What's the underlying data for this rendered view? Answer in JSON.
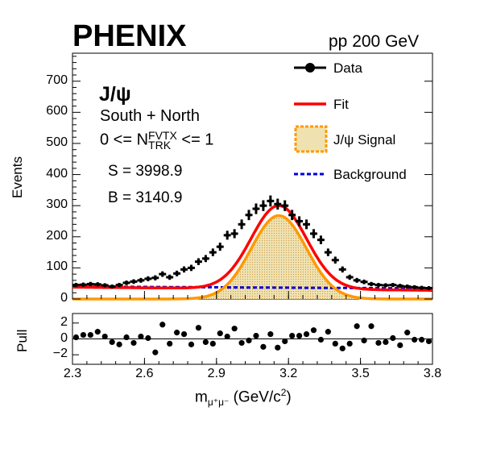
{
  "header": {
    "experiment": "PHENIX",
    "energy": "pp 200 GeV"
  },
  "annotations": {
    "particle": "J/ψ",
    "arm": "South + North",
    "multiplicity_prefix": "0 <= N",
    "multiplicity_sub": "TRK",
    "multiplicity_sup": "FVTX",
    "multiplicity_suffix": " <= 1",
    "signal_count": "S = 3998.9",
    "background_count": "B = 3140.9"
  },
  "legend": {
    "data": "Data",
    "fit": "Fit",
    "signal": "J/ψ Signal",
    "background": "Background"
  },
  "colors": {
    "data": "#000000",
    "fit": "#ff0000",
    "signal": "#ff9900",
    "signal_fill": "#f0e2b0",
    "background": "#0000dd"
  },
  "chart_data": {
    "type": "scatter",
    "title": "",
    "xlabel_main": "m",
    "xlabel_sub": "μ⁺μ⁻",
    "xlabel_units": " (GeV/c",
    "xlabel_sup": "2",
    "xlabel_close": ")",
    "ylabel": "Events",
    "pull_ylabel": "Pull",
    "xlim": [
      2.3,
      3.8
    ],
    "ylim": [
      0,
      790
    ],
    "pull_ylim": [
      -3.2,
      3.2
    ],
    "x_ticks": [
      "2.3",
      "2.6",
      "2.9",
      "3.2",
      "3.5",
      "3.8"
    ],
    "x_tick_values": [
      2.3,
      2.6,
      2.9,
      3.2,
      3.5,
      3.8
    ],
    "y_ticks": [
      "0",
      "100",
      "200",
      "300",
      "400",
      "500",
      "600",
      "700"
    ],
    "y_tick_values": [
      0,
      100,
      200,
      300,
      400,
      500,
      600,
      700
    ],
    "pull_ticks": [
      "2",
      "0",
      "−2"
    ],
    "pull_tick_values": [
      2,
      0,
      -2
    ],
    "data_x": [
      2.315,
      2.345,
      2.375,
      2.405,
      2.435,
      2.465,
      2.495,
      2.525,
      2.555,
      2.585,
      2.615,
      2.645,
      2.675,
      2.705,
      2.735,
      2.765,
      2.795,
      2.825,
      2.855,
      2.885,
      2.915,
      2.945,
      2.975,
      3.005,
      3.035,
      3.065,
      3.095,
      3.125,
      3.155,
      3.185,
      3.215,
      3.245,
      3.275,
      3.305,
      3.335,
      3.365,
      3.395,
      3.425,
      3.455,
      3.485,
      3.515,
      3.545,
      3.575,
      3.605,
      3.635,
      3.665,
      3.695,
      3.725,
      3.755,
      3.785
    ],
    "data_y": [
      45,
      46,
      48,
      47,
      44,
      40,
      45,
      52,
      56,
      60,
      65,
      68,
      80,
      70,
      82,
      95,
      100,
      120,
      130,
      150,
      168,
      205,
      210,
      240,
      270,
      290,
      300,
      315,
      305,
      300,
      270,
      250,
      240,
      210,
      190,
      150,
      125,
      95,
      70,
      60,
      55,
      48,
      45,
      44,
      45,
      42,
      40,
      38,
      36,
      35
    ],
    "pull": [
      0.2,
      0.5,
      0.5,
      0.9,
      0.3,
      -0.4,
      -0.7,
      0.2,
      -0.5,
      0.3,
      0.1,
      -1.7,
      1.8,
      -0.6,
      0.8,
      0.6,
      -0.7,
      1.4,
      -0.4,
      -0.6,
      0.7,
      0.3,
      1.3,
      -0.5,
      -0.2,
      0.4,
      -1.0,
      0.6,
      -1.1,
      -0.3,
      0.4,
      0.4,
      0.6,
      1.1,
      -0.1,
      0.9,
      -0.6,
      -1.2,
      -0.6,
      1.6,
      -0.2,
      1.6,
      -0.5,
      -0.4,
      0.1,
      -0.8,
      0.8,
      -0.1,
      -0.1,
      -0.3
    ],
    "signal": {
      "mean": 3.16,
      "sigma": 0.115,
      "amp": 268
    },
    "background": {
      "at_min": 40,
      "at_max": 34
    },
    "fit_background": {
      "at_min": 38,
      "at_max": 28
    }
  }
}
